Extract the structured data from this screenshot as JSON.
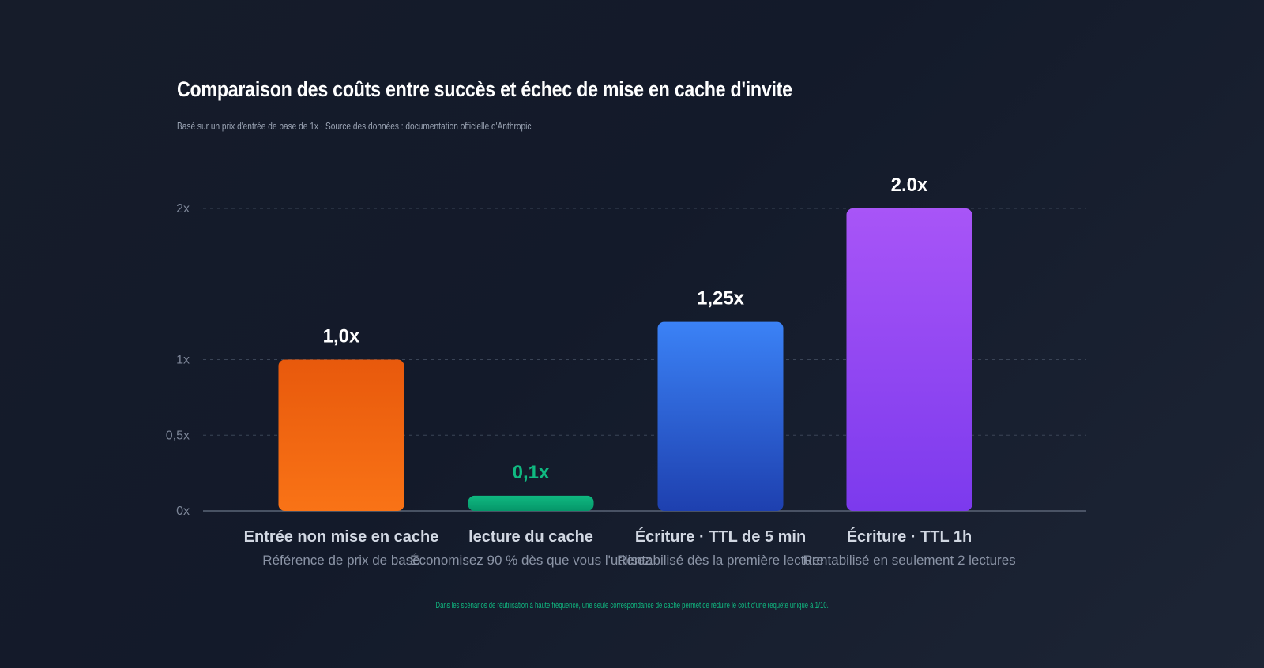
{
  "header": {
    "title": "Comparaison des coûts entre succès et échec de mise en cache d'invite",
    "subtitle": "Basé sur un prix d'entrée de base de 1x · Source des données : documentation officielle d'Anthropic"
  },
  "footnote": "Dans les scénarios de réutilisation à haute fréquence, une seule correspondance de cache permet de réduire le coût d'une requête unique à 1/10.",
  "chart_data": {
    "type": "bar",
    "ylim": [
      0,
      2
    ],
    "grid": true,
    "yticks": [
      {
        "value": 0,
        "label": "0x"
      },
      {
        "value": 0.5,
        "label": "0,5x"
      },
      {
        "value": 1,
        "label": "1x"
      },
      {
        "value": 2,
        "label": "2x"
      }
    ],
    "categories": [
      "Entrée non mise en cache",
      "lecture du cache",
      "Écriture · TTL de 5 min",
      "Écriture · TTL 1h"
    ],
    "descriptions": [
      "Référence de prix de base",
      "Économisez 90 % dès que vous l'utilisez",
      "Rentabilisé dès la première lecture",
      "Rentabilisé en seulement 2 lectures"
    ],
    "values": [
      1.0,
      0.1,
      1.25,
      2.0
    ],
    "value_labels": [
      "1,0x",
      "0,1x",
      "1,25x",
      "2.0x"
    ],
    "colors": [
      {
        "top": "#e8590c",
        "bottom": "#f97316"
      },
      {
        "top": "#10b981",
        "bottom": "#059669"
      },
      {
        "top": "#3b82f6",
        "bottom": "#1e40af"
      },
      {
        "top": "#a855f7",
        "bottom": "#7c3aed"
      }
    ],
    "value_label_colors": [
      "#ffffff",
      "#10b981",
      "#ffffff",
      "#ffffff"
    ]
  }
}
